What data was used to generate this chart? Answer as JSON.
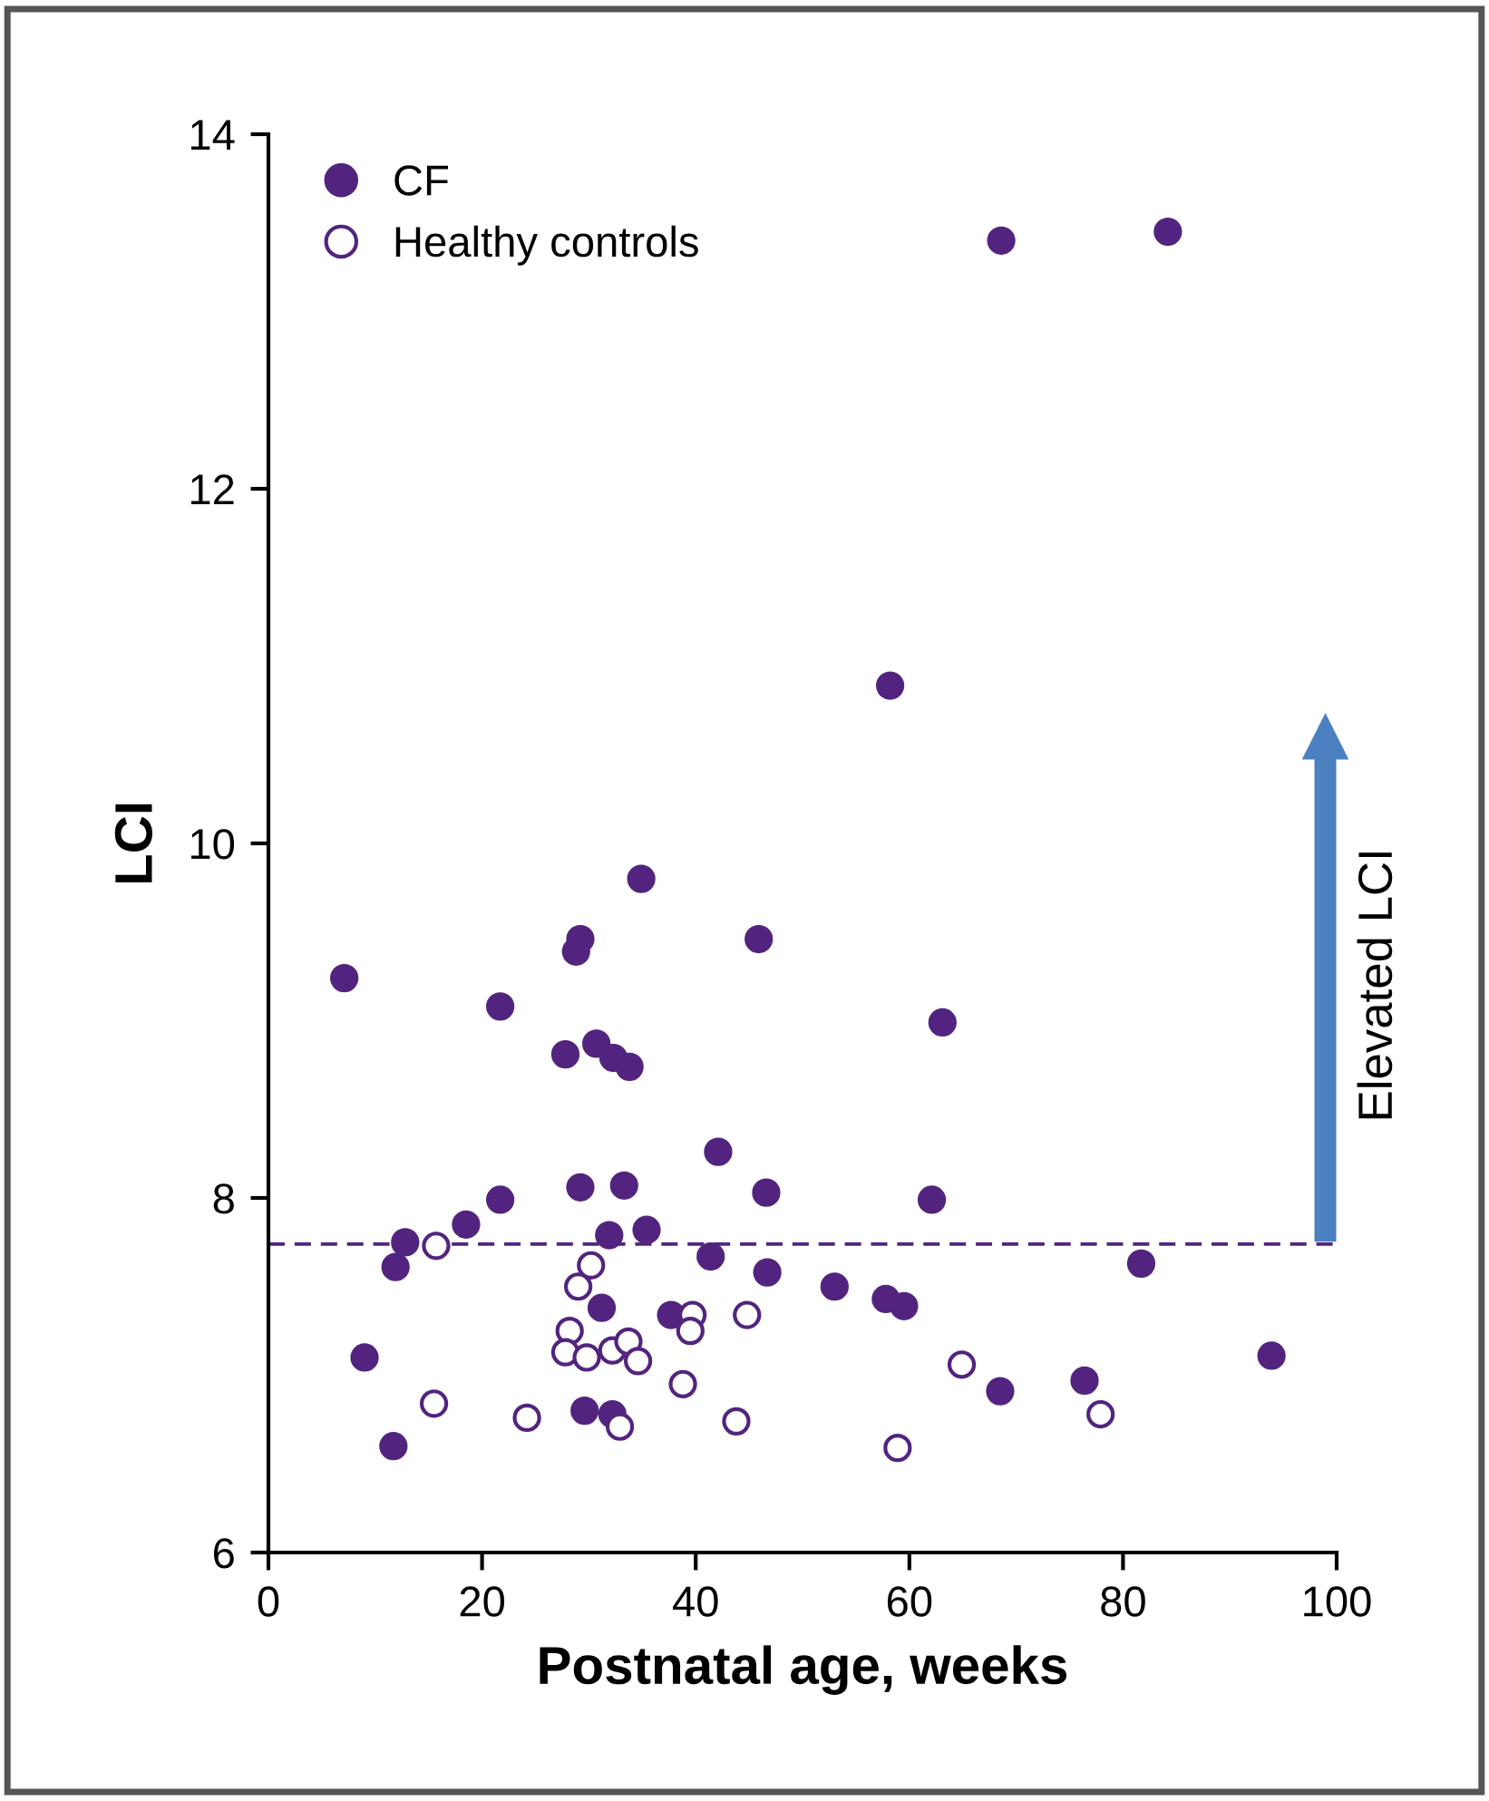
{
  "chart_data": {
    "type": "scatter",
    "xlabel": "Postnatal age, weeks",
    "ylabel": "LCI",
    "xlim": [
      0,
      100
    ],
    "ylim": [
      6,
      14
    ],
    "xticks": [
      0,
      20,
      40,
      60,
      80,
      100
    ],
    "yticks": [
      6,
      8,
      10,
      12,
      14
    ],
    "grid": false,
    "legend": "top left",
    "marker": "circle",
    "series": [
      {
        "name": "CF",
        "color": "#52247f",
        "x": [
          7.1,
          29.2,
          28.8,
          34.9,
          45.9,
          21.7,
          27.8,
          30.7,
          32.3,
          33.8,
          42.1,
          29.2,
          33.3,
          46.6,
          21.7,
          18.5,
          12.8,
          31.9,
          35.4,
          41.4,
          11.9,
          46.7,
          31.2,
          37.7,
          9.0,
          29.6,
          32.2,
          11.7,
          63.1,
          62.1,
          53.0,
          57.8,
          59.5,
          81.7,
          93.9,
          68.5,
          76.4,
          68.6,
          84.2,
          58.2
        ],
        "values": [
          9.24,
          9.46,
          9.39,
          9.8,
          9.46,
          9.08,
          8.81,
          8.87,
          8.79,
          8.74,
          8.26,
          8.06,
          8.07,
          8.03,
          7.99,
          7.85,
          7.75,
          7.79,
          7.82,
          7.67,
          7.61,
          7.58,
          7.38,
          7.34,
          7.1,
          6.8,
          6.78,
          6.6,
          8.99,
          7.99,
          7.5,
          7.43,
          7.39,
          7.63,
          7.11,
          6.91,
          6.97,
          13.4,
          13.45,
          10.89
        ]
      },
      {
        "name": "Healthy controls",
        "color": "#52247f",
        "x": [
          15.7,
          30.2,
          29.0,
          39.7,
          39.5,
          44.8,
          28.2,
          27.8,
          29.8,
          32.2,
          33.7,
          34.6,
          38.8,
          15.5,
          24.2,
          32.9,
          43.8,
          64.9,
          77.9,
          58.9
        ],
        "values": [
          7.73,
          7.62,
          7.5,
          7.34,
          7.25,
          7.34,
          7.25,
          7.13,
          7.1,
          7.14,
          7.19,
          7.08,
          6.95,
          6.84,
          6.76,
          6.71,
          6.74,
          7.06,
          6.78,
          6.59
        ]
      }
    ],
    "ref_lines": [
      {
        "axis": "y",
        "value": 7.74,
        "label": null,
        "color": "#52247f",
        "line_style": "dashed"
      }
    ],
    "annotations": [
      "Elevated LCI"
    ]
  }
}
